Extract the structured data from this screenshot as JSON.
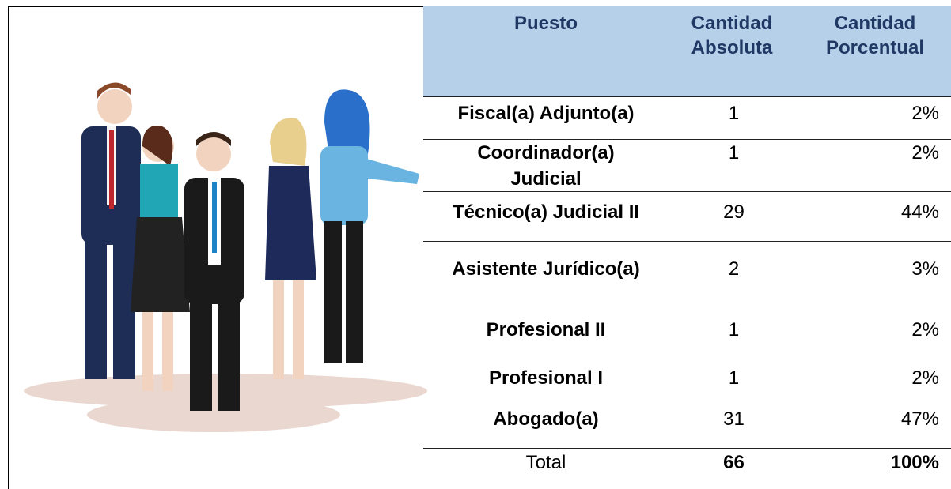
{
  "table": {
    "header": [
      "Puesto",
      "Cantidad Absoluta",
      "Cantidad Porcentual"
    ],
    "rows": [
      [
        "Fiscal(a) Adjunto(a)",
        "1",
        "2%"
      ],
      [
        "Coordinador(a) Judicial",
        "1",
        "2%"
      ],
      [
        "Técnico(a) Judicial II",
        "29",
        "44%"
      ],
      [
        "Asistente Jurídico(a)",
        "2",
        "3%"
      ],
      [
        "Profesional II",
        "1",
        "2%"
      ],
      [
        "Profesional I",
        "1",
        "2%"
      ],
      [
        "Abogado(a)",
        "31",
        "47%"
      ]
    ],
    "total": [
      "Total",
      "66",
      "100%"
    ]
  }
}
